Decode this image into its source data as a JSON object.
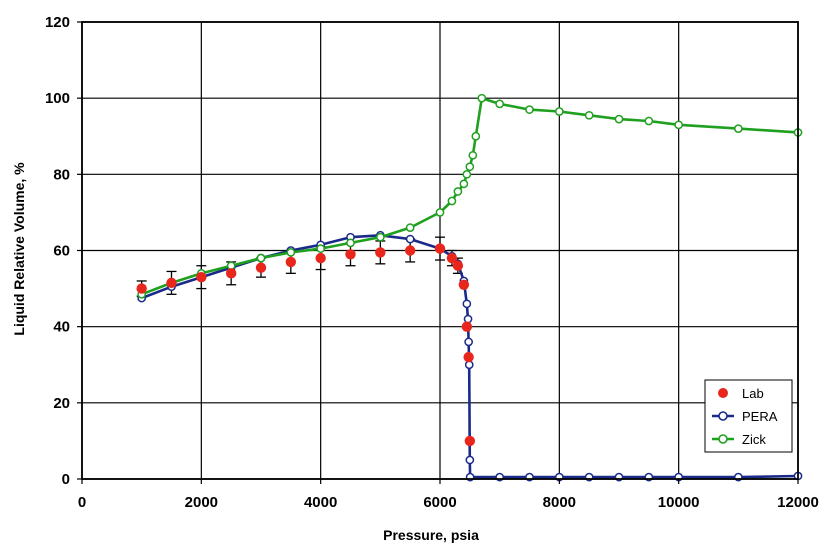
{
  "chart_data": {
    "type": "scatter",
    "title": "",
    "xlabel": "Pressure, psia",
    "ylabel": "Liquid Relative Volume, %",
    "xlim": [
      0,
      12000
    ],
    "ylim": [
      0,
      120
    ],
    "xticks": [
      0,
      2000,
      4000,
      6000,
      8000,
      10000,
      12000
    ],
    "yticks": [
      0,
      20,
      40,
      60,
      80,
      100,
      120
    ],
    "grid": true,
    "legend_position": "bottom-right",
    "series": [
      {
        "name": "Lab",
        "kind": "points_with_errorbars",
        "color": "#e8261c",
        "x": [
          1000,
          1500,
          2000,
          2500,
          3000,
          3500,
          4000,
          4500,
          5000,
          5500,
          6000,
          6200,
          6300,
          6400,
          6450,
          6480,
          6500
        ],
        "y": [
          50,
          51.5,
          53,
          54,
          55.5,
          57,
          58,
          59,
          59.5,
          60,
          60.5,
          58,
          56,
          51,
          40,
          32,
          10
        ],
        "err": [
          2,
          3,
          3,
          3,
          2.5,
          3,
          3,
          3,
          3,
          3,
          3,
          2,
          2,
          0,
          0,
          0,
          0
        ]
      },
      {
        "name": "PERA",
        "kind": "line_open_markers",
        "color": "#1a2a8a",
        "x": [
          1000,
          1500,
          2000,
          2500,
          3000,
          3500,
          4000,
          4500,
          5000,
          5500,
          6000,
          6200,
          6300,
          6400,
          6450,
          6470,
          6480,
          6490,
          6500,
          6505,
          7000,
          7500,
          8000,
          8500,
          9000,
          9500,
          10000,
          11000,
          12000
        ],
        "y": [
          47.5,
          50.5,
          53,
          55.5,
          58,
          60,
          61.5,
          63.5,
          64,
          63,
          60.5,
          58.5,
          56.5,
          52,
          46,
          42,
          36,
          30,
          5,
          0.5,
          0.5,
          0.5,
          0.5,
          0.5,
          0.5,
          0.5,
          0.5,
          0.5,
          0.8
        ]
      },
      {
        "name": "Zick",
        "kind": "line_open_markers",
        "color": "#1fa01f",
        "x": [
          1000,
          1500,
          2000,
          2500,
          3000,
          3500,
          4000,
          4500,
          5000,
          5500,
          6000,
          6200,
          6300,
          6400,
          6450,
          6500,
          6550,
          6600,
          6700,
          7000,
          7500,
          8000,
          8500,
          9000,
          9500,
          10000,
          11000,
          12000
        ],
        "y": [
          48.5,
          51.5,
          54,
          56,
          58,
          59.5,
          60.5,
          62,
          63.5,
          66,
          70,
          73,
          75.5,
          77.5,
          80,
          82,
          85,
          90,
          100,
          98.5,
          97,
          96.5,
          95.5,
          94.5,
          94,
          93,
          92,
          91
        ]
      }
    ]
  },
  "colors": {
    "lab": "#e8261c",
    "pera": "#1a2a8a",
    "zick": "#1fa01f",
    "grid": "#000000"
  }
}
